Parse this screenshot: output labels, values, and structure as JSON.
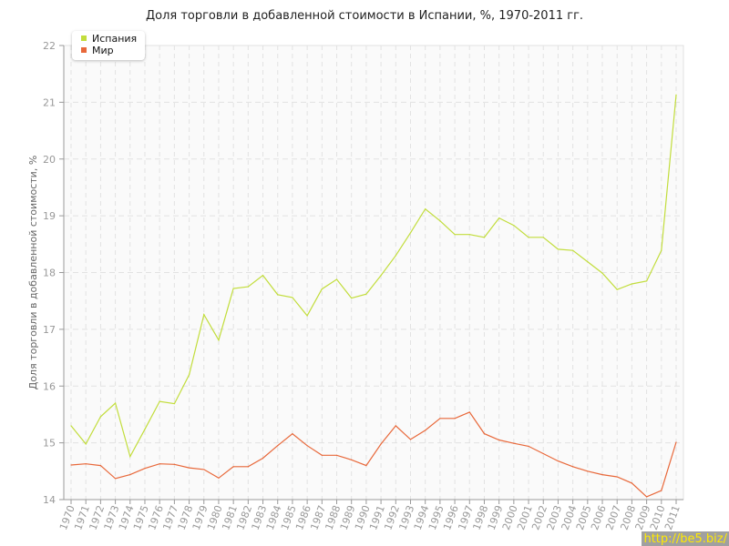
{
  "chart_data": {
    "type": "line",
    "title": "Доля торговли в добавленной стоимости в Испании, %, 1970-2011 гг.",
    "xlabel": "",
    "ylabel": "Доля торговли в добавленной стоимости, %",
    "ylim": [
      14,
      22
    ],
    "yticks": [
      "14",
      "15",
      "16",
      "17",
      "18",
      "19",
      "20",
      "21",
      "22"
    ],
    "grid": true,
    "legend_position": "top-left",
    "categories": [
      "1970",
      "1971",
      "1972",
      "1973",
      "1974",
      "1975",
      "1976",
      "1977",
      "1978",
      "1979",
      "1980",
      "1981",
      "1982",
      "1983",
      "1984",
      "1985",
      "1986",
      "1987",
      "1988",
      "1989",
      "1990",
      "1991",
      "1992",
      "1993",
      "1994",
      "1995",
      "1996",
      "1997",
      "1998",
      "1999",
      "2000",
      "2001",
      "2002",
      "2003",
      "2004",
      "2005",
      "2006",
      "2007",
      "2008",
      "2009",
      "2010",
      "2011"
    ],
    "series": [
      {
        "name": "Испания",
        "color": "#c2dd3c",
        "values": [
          15.3,
          14.98,
          15.46,
          15.7,
          14.76,
          15.24,
          15.73,
          15.69,
          16.2,
          17.26,
          16.81,
          17.72,
          17.75,
          17.95,
          17.61,
          17.56,
          17.24,
          17.71,
          17.88,
          17.55,
          17.62,
          17.95,
          18.3,
          18.7,
          19.12,
          18.91,
          18.67,
          18.67,
          18.62,
          18.96,
          18.83,
          18.62,
          18.62,
          18.41,
          18.39,
          18.19,
          17.99,
          17.7,
          17.8,
          17.85,
          18.39,
          21.13
        ]
      },
      {
        "name": "Мир",
        "color": "#e8683a",
        "values": [
          14.61,
          14.63,
          14.6,
          14.37,
          14.44,
          14.55,
          14.63,
          14.62,
          14.56,
          14.53,
          14.38,
          14.58,
          14.58,
          14.73,
          14.95,
          15.16,
          14.95,
          14.78,
          14.78,
          14.7,
          14.6,
          14.98,
          15.3,
          15.06,
          15.22,
          15.43,
          15.43,
          15.54,
          15.16,
          15.05,
          14.99,
          14.94,
          14.81,
          14.68,
          14.58,
          14.5,
          14.44,
          14.4,
          14.29,
          14.05,
          14.16,
          15.01
        ]
      }
    ]
  },
  "watermark": "http://be5.biz/"
}
